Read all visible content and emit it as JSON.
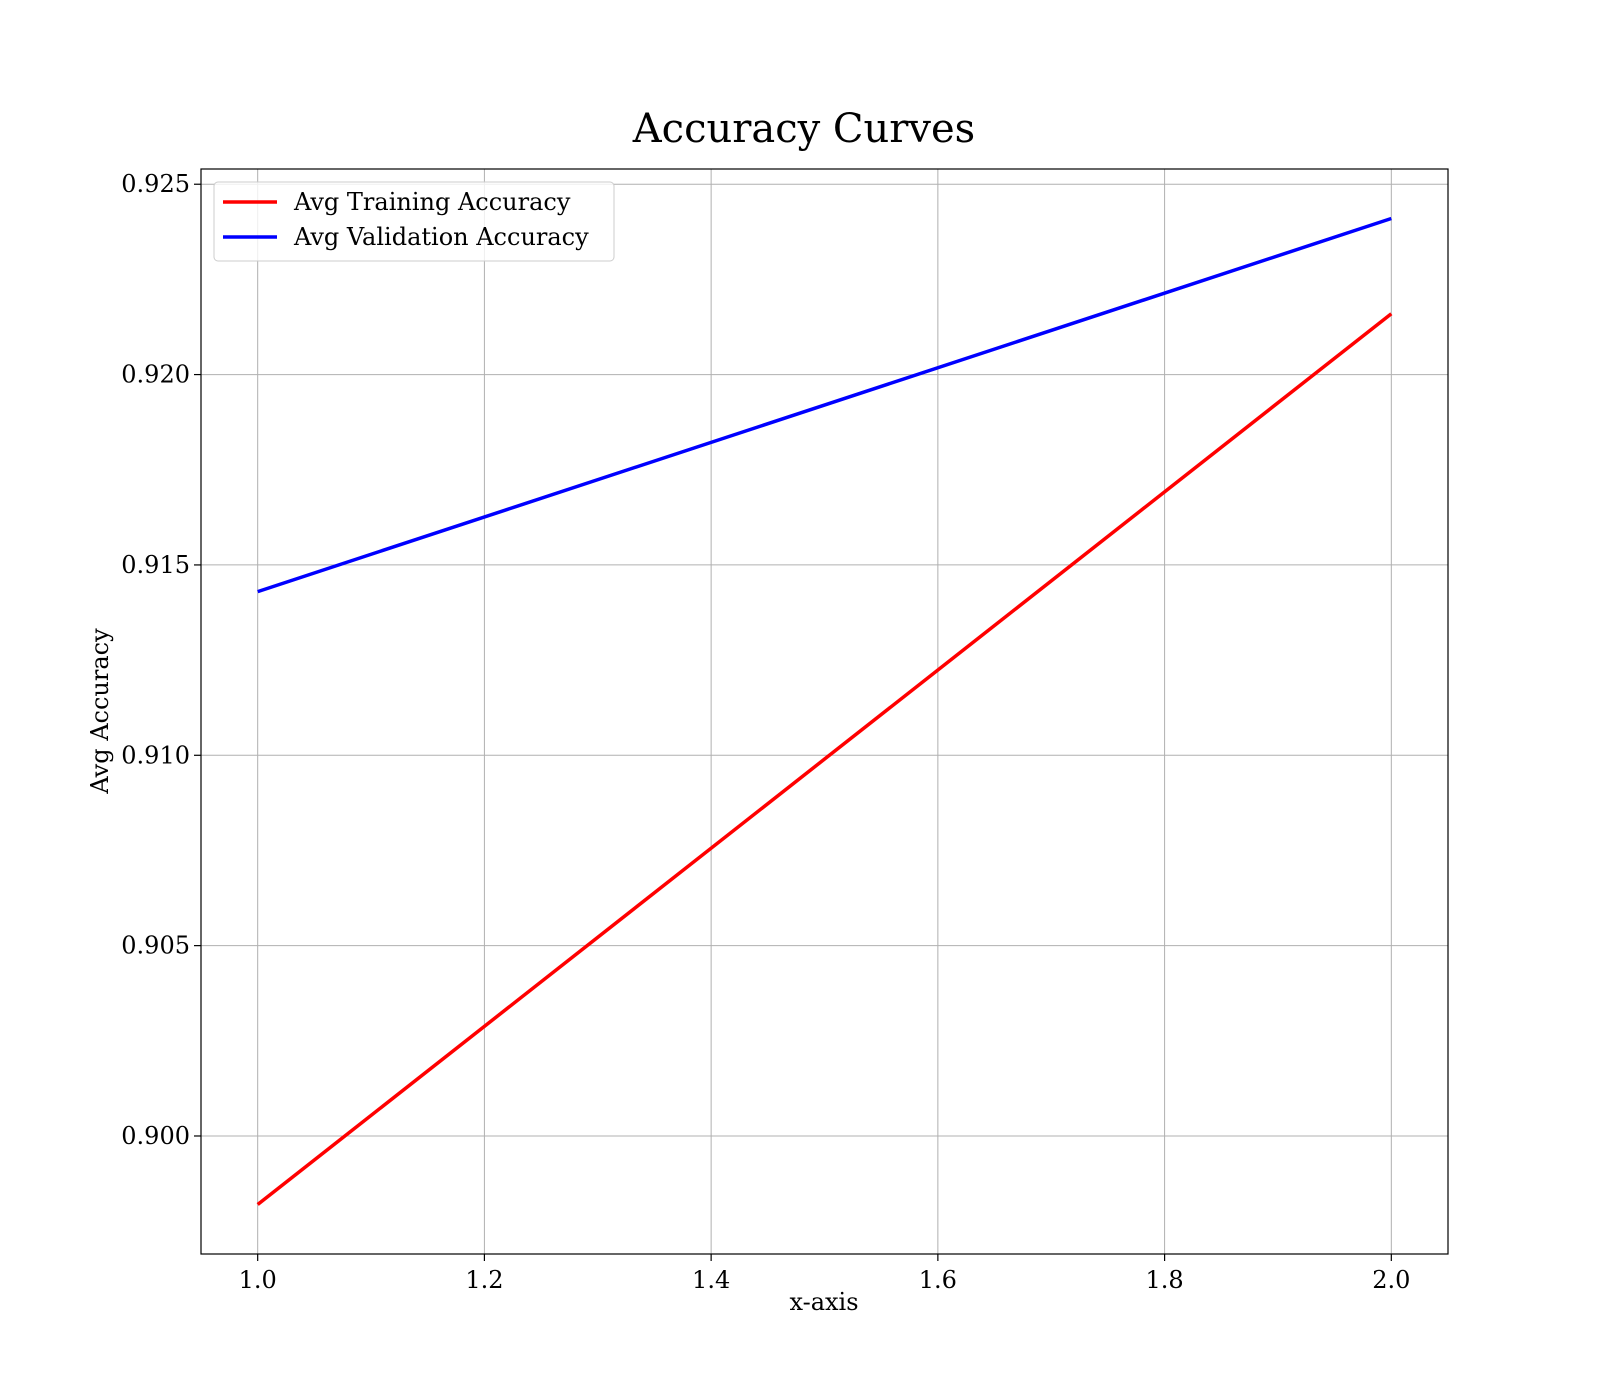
{
  "chart_data": {
    "type": "line",
    "title": "Accuracy Curves",
    "xlabel": "x-axis",
    "ylabel": "Avg Accuracy",
    "xlim": [
      0.95,
      2.05
    ],
    "ylim": [
      0.8969,
      0.9254
    ],
    "xticks": [
      1.0,
      1.2,
      1.4,
      1.6,
      1.8,
      2.0
    ],
    "xtick_labels": [
      "1.0",
      "1.2",
      "1.4",
      "1.6",
      "1.8",
      "2.0"
    ],
    "yticks": [
      0.9,
      0.905,
      0.91,
      0.915,
      0.92,
      0.925
    ],
    "ytick_labels": [
      "0.900",
      "0.905",
      "0.910",
      "0.915",
      "0.920",
      "0.925"
    ],
    "grid": true,
    "legend_position": "top-left",
    "series": [
      {
        "name": "Avg Training Accuracy",
        "color": "#ff0000",
        "x": [
          1.0,
          2.0
        ],
        "y": [
          0.8982,
          0.9216
        ]
      },
      {
        "name": "Avg Validation Accuracy",
        "color": "#0000ff",
        "x": [
          1.0,
          2.0
        ],
        "y": [
          0.9143,
          0.9241
        ]
      }
    ]
  }
}
